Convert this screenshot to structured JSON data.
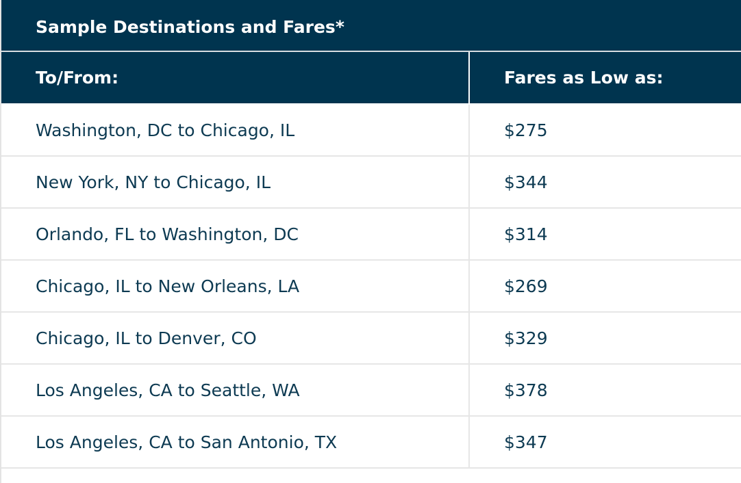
{
  "title": "Sample Destinations and Fares*",
  "table": {
    "header": [
      "To/From:",
      "Fares as Low as:"
    ],
    "rows": [
      [
        "Washington, DC to Chicago, IL",
        "$275"
      ],
      [
        "New York, NY to Chicago, IL",
        "$344"
      ],
      [
        "Orlando, FL to Washington, DC",
        "$314"
      ],
      [
        "Chicago, IL to New Orleans, LA",
        "$269"
      ],
      [
        "Chicago, IL to Denver, CO",
        "$329"
      ],
      [
        "Los Angeles, CA to Seattle, WA",
        "$378"
      ],
      [
        "Los Angeles, CA to San Antonio, TX",
        "$347"
      ]
    ]
  }
}
